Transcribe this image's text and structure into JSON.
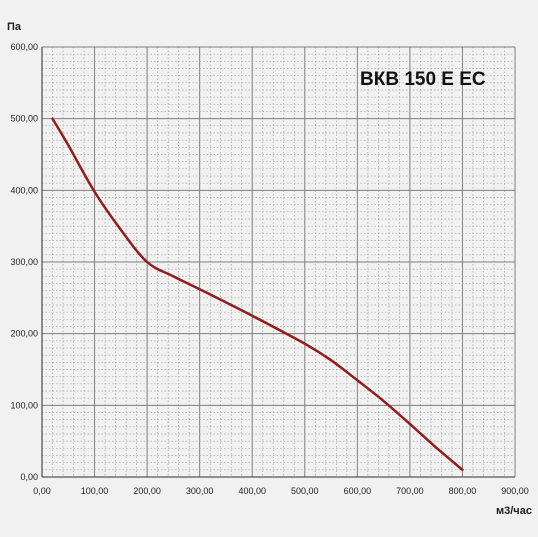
{
  "chart_data": {
    "type": "line",
    "title": "ВКВ 150 Е ЕС",
    "xlabel": "м3/час",
    "ylabel": "Па",
    "xlim": [
      0,
      900
    ],
    "ylim": [
      0,
      600
    ],
    "x_ticks": [
      0,
      100,
      200,
      300,
      400,
      500,
      600,
      700,
      800,
      900
    ],
    "y_ticks": [
      0,
      100,
      200,
      300,
      400,
      500,
      600
    ],
    "x_tick_labels": [
      "0,00",
      "100,00",
      "200,00",
      "300,00",
      "400,00",
      "500,00",
      "600,00",
      "700,00",
      "800,00",
      "900,00"
    ],
    "y_tick_labels": [
      "0,00",
      "100,00",
      "200,00",
      "300,00",
      "400,00",
      "500,00",
      "600,00"
    ],
    "grid": true,
    "series": [
      {
        "color": "#8f1e1e",
        "x": [
          20,
          50,
          100,
          150,
          200,
          250,
          300,
          400,
          500,
          550,
          600,
          650,
          700,
          750,
          800
        ],
        "y": [
          500,
          463,
          398,
          345,
          300,
          280,
          262,
          225,
          186,
          163,
          135,
          106,
          74,
          41,
          10
        ]
      }
    ]
  }
}
